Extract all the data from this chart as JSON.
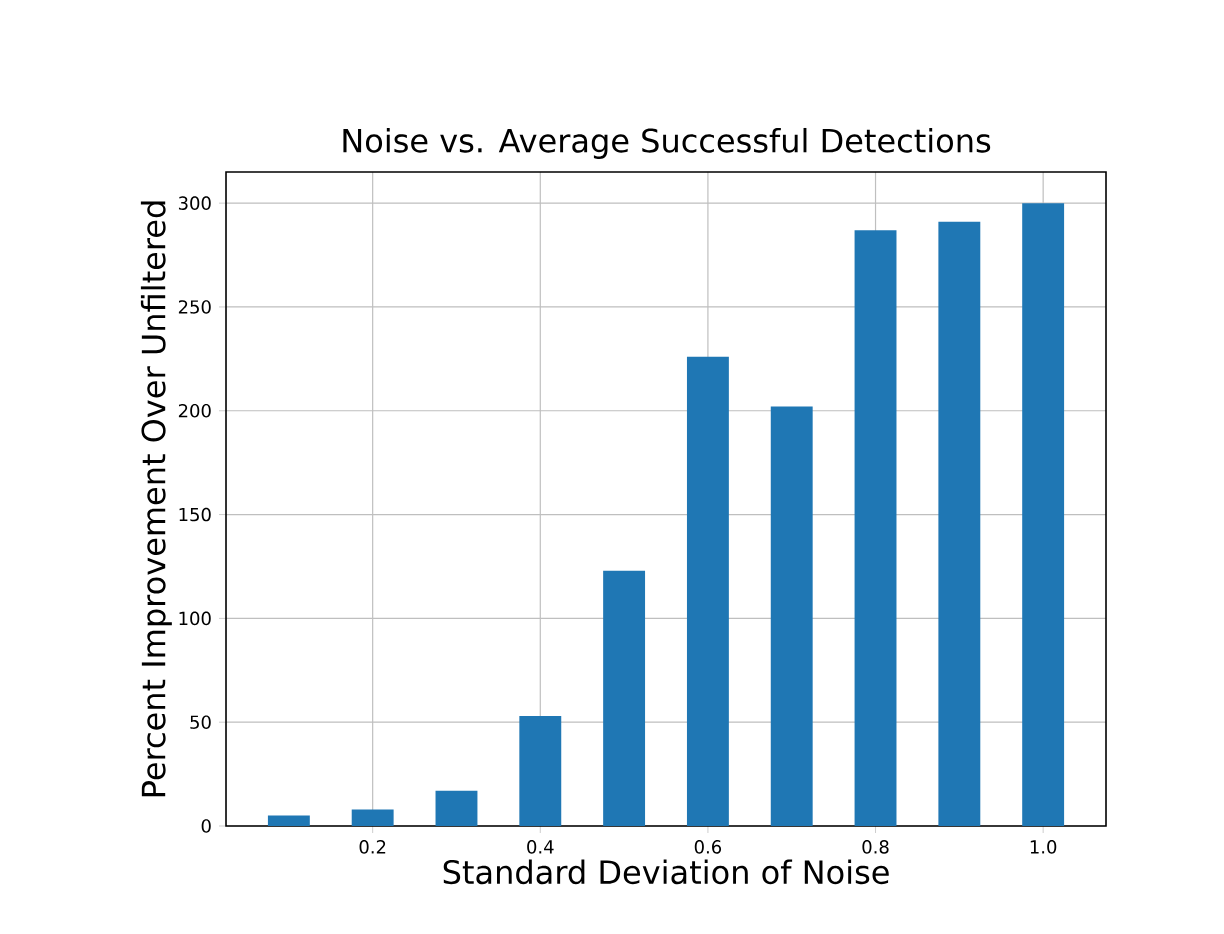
{
  "chart_data": {
    "type": "bar",
    "title": "Noise vs. Average Successful Detections",
    "xlabel": "Standard Deviation of Noise",
    "ylabel": "Percent Improvement Over Unfiltered",
    "x": [
      0.1,
      0.2,
      0.3,
      0.4,
      0.5,
      0.6,
      0.7,
      0.8,
      0.9,
      1.0
    ],
    "values": [
      5,
      8,
      17,
      53,
      123,
      226,
      202,
      287,
      291,
      300
    ],
    "color": "#1f77b4",
    "xlim": [
      0.025,
      1.075
    ],
    "ylim": [
      0,
      315
    ],
    "xticks": [
      {
        "value": 0.2,
        "label": "0.2"
      },
      {
        "value": 0.4,
        "label": "0.4"
      },
      {
        "value": 0.6,
        "label": "0.6"
      },
      {
        "value": 0.8,
        "label": "0.8"
      },
      {
        "value": 1.0,
        "label": "1.0"
      }
    ],
    "yticks": [
      0,
      50,
      100,
      150,
      200,
      250,
      300
    ],
    "grid": true
  }
}
